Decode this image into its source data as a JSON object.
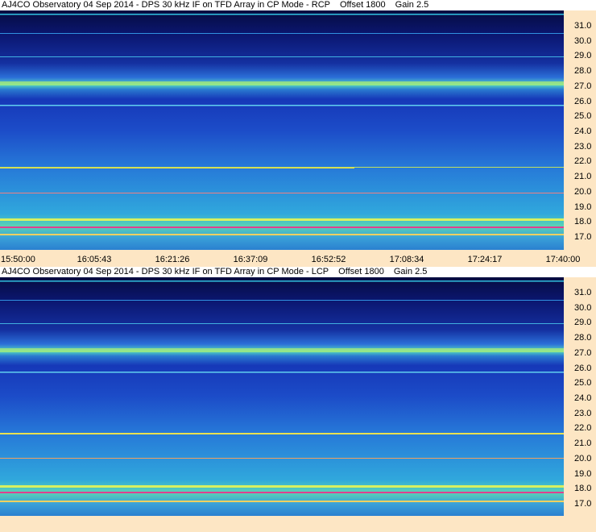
{
  "panels": [
    {
      "title": "AJ4CO Observatory 04 Sep 2014 - DPS 30 kHz IF on TFD Array in CP Mode - RCP",
      "offset": "Offset 1800",
      "gain": "Gain 2.5",
      "frequency_labels": [
        "31.0",
        "30.0",
        "29.0",
        "28.0",
        "27.0",
        "26.0",
        "25.0",
        "24.0",
        "23.0",
        "22.0",
        "21.0",
        "20.0",
        "19.0",
        "18.0",
        "17.0"
      ],
      "time_labels": [
        "15:50:00",
        "16:05:43",
        "16:21:26",
        "16:37:09",
        "16:52:52",
        "17:08:34",
        "17:24:17",
        "17:40:00"
      ]
    },
    {
      "title": "AJ4CO Observatory 04 Sep 2014 - DPS 30 kHz IF on TFD Array in CP Mode - LCP",
      "offset": "Offset 1800",
      "gain": "Gain 2.5",
      "frequency_labels": [
        "31.0",
        "30.0",
        "29.0",
        "28.0",
        "27.0",
        "26.0",
        "25.0",
        "24.0",
        "23.0",
        "22.0",
        "21.0",
        "20.0",
        "19.0",
        "18.0",
        "17.0"
      ],
      "time_labels": []
    }
  ]
}
